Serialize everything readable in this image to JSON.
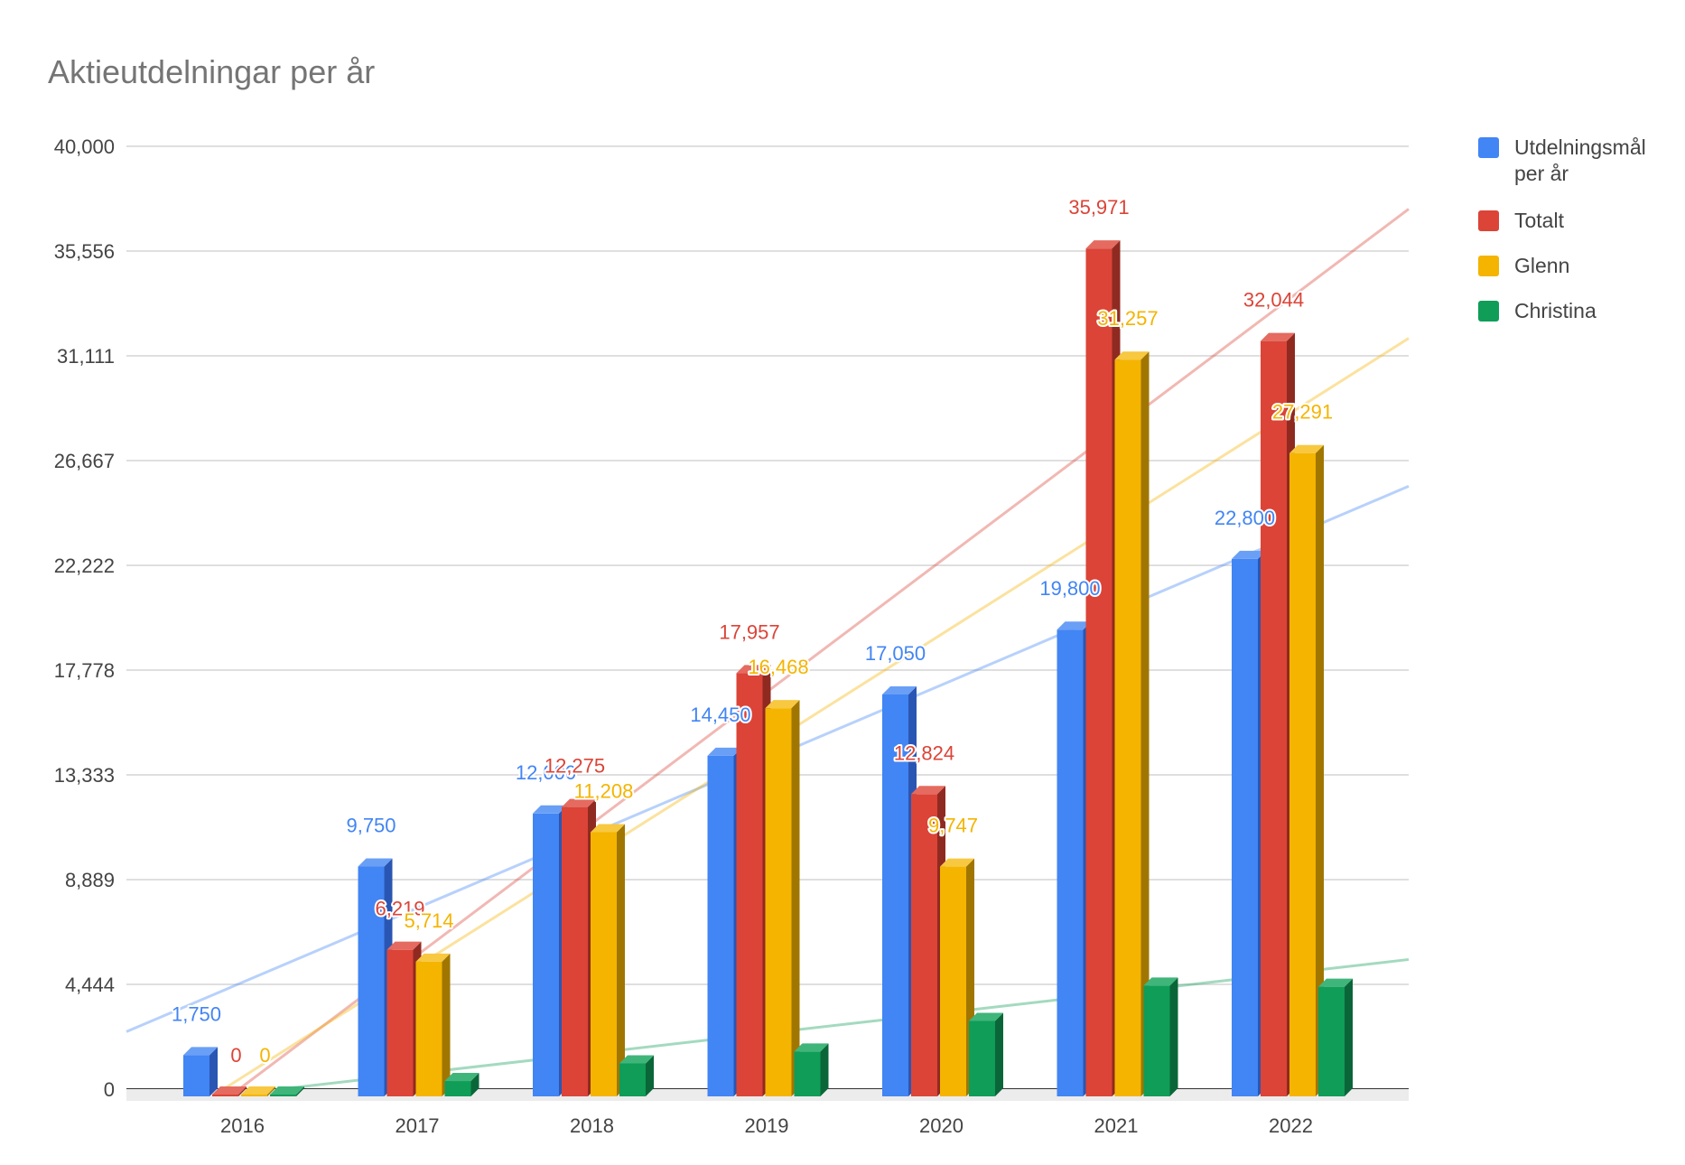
{
  "chart_data": {
    "type": "bar",
    "title": "Aktieutdelningar per år",
    "categories": [
      "2016",
      "2017",
      "2018",
      "2019",
      "2020",
      "2021",
      "2022"
    ],
    "series": [
      {
        "name": "Utdelningsmål per år",
        "legend_lines": [
          "Utdelningsmål",
          "per år"
        ],
        "color": "#4285f4",
        "side_color": "#2a56b3",
        "top_color": "#6a9ff6",
        "values": [
          1750,
          9750,
          12000,
          14450,
          17050,
          19800,
          22800
        ],
        "labels": [
          "1,750",
          "9,750",
          "12,000",
          "14,450",
          "17,050",
          "19,800",
          "22,800"
        ]
      },
      {
        "name": "Totalt",
        "color": "#db4437",
        "side_color": "#8f2a21",
        "top_color": "#e56a5f",
        "values": [
          0,
          6219,
          12275,
          17957,
          12824,
          35971,
          32044
        ],
        "labels": [
          "0",
          "6,219",
          "12,275",
          "17,957",
          "12,824",
          "35,971",
          "32,044"
        ]
      },
      {
        "name": "Glenn",
        "color": "#f4b400",
        "side_color": "#a07600",
        "top_color": "#f7c840",
        "values": [
          0,
          5714,
          11208,
          16468,
          9747,
          31257,
          27291
        ],
        "labels": [
          "0",
          "5,714",
          "11,208",
          "16,468",
          "9,747",
          "31,257",
          "27,291"
        ]
      },
      {
        "name": "Christina",
        "color": "#0f9d58",
        "side_color": "#0a6638",
        "top_color": "#3fb57a",
        "values": [
          0,
          650,
          1400,
          1900,
          3200,
          4700,
          4650
        ],
        "labels": []
      }
    ],
    "yticks": [
      "0",
      "4,444",
      "8,889",
      "13,333",
      "17,778",
      "22,222",
      "26,667",
      "31,111",
      "35,556",
      "40,000"
    ],
    "ylim": [
      0,
      40000
    ],
    "trendlines": true,
    "grid": true,
    "legend_position": "right",
    "style": "3d-bar"
  }
}
